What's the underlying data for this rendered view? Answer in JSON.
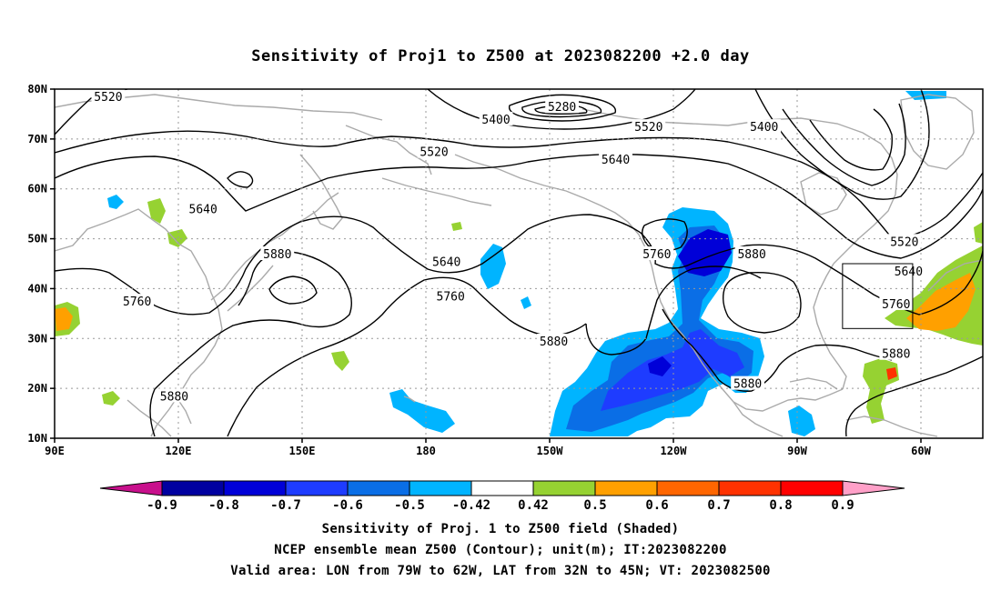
{
  "title": "Sensitivity of Proj1 to Z500 at 2023082200 +2.0 day",
  "lat_ticks": [
    "80N",
    "70N",
    "60N",
    "50N",
    "40N",
    "30N",
    "20N",
    "10N"
  ],
  "lon_ticks": [
    "90E",
    "120E",
    "150E",
    "180",
    "150W",
    "120W",
    "90W",
    "60W"
  ],
  "contour_labels": [
    {
      "text": "5520",
      "lon": 103,
      "lat": 78.5
    },
    {
      "text": "5280",
      "lon": -147,
      "lat": 76.5
    },
    {
      "text": "5400",
      "lon": -163,
      "lat": 74
    },
    {
      "text": "5520",
      "lon": -126,
      "lat": 72.5
    },
    {
      "text": "5400",
      "lon": -98,
      "lat": 72.5
    },
    {
      "text": "5520",
      "lon": -178,
      "lat": 67.5
    },
    {
      "text": "5640",
      "lon": -134,
      "lat": 66
    },
    {
      "text": "5640",
      "lon": 126,
      "lat": 56
    },
    {
      "text": "5520",
      "lon": -64,
      "lat": 49.5
    },
    {
      "text": "5880",
      "lon": 144,
      "lat": 47
    },
    {
      "text": "5640",
      "lon": -175,
      "lat": 45.5
    },
    {
      "text": "5760",
      "lon": -124,
      "lat": 47
    },
    {
      "text": "5880",
      "lon": -101,
      "lat": 47
    },
    {
      "text": "5640",
      "lon": -63,
      "lat": 43.5
    },
    {
      "text": "5760",
      "lon": 110,
      "lat": 37.5
    },
    {
      "text": "5760",
      "lon": -174,
      "lat": 38.5
    },
    {
      "text": "5760",
      "lon": -66,
      "lat": 37
    },
    {
      "text": "5880",
      "lon": -149,
      "lat": 29.5
    },
    {
      "text": "5880",
      "lon": -66,
      "lat": 27
    },
    {
      "text": "5880",
      "lon": -102,
      "lat": 21
    },
    {
      "text": "5880",
      "lon": 119,
      "lat": 18.5
    }
  ],
  "valid_area": {
    "lon_from": -79,
    "lon_to": -62,
    "lat_from": 32,
    "lat_to": 45
  },
  "colorbar": {
    "labels": [
      "-0.9",
      "-0.8",
      "-0.7",
      "-0.6",
      "-0.5",
      "-0.42",
      "0.42",
      "0.5",
      "0.6",
      "0.7",
      "0.8",
      "0.9"
    ],
    "colors": [
      "#0000a0",
      "#0000d8",
      "#1e3cff",
      "#0a6ee6",
      "#00b4ff",
      "#ffffff",
      "#96d232",
      "#ffa000",
      "#ff6600",
      "#ff3200",
      "#ff0000"
    ],
    "low_end_color": "#c8108c",
    "high_end_color": "#ffa0c8"
  },
  "colors": {
    "contour": "#000000",
    "coast": "#aaaaaa",
    "grid": "#999999",
    "neg_light": "#00b4ff",
    "neg_mid": "#0a6ee6",
    "neg_strong": "#1e3cff",
    "neg_max": "#0000d8",
    "pos_green": "#96d232",
    "pos_orange": "#ffa000",
    "pos_red": "#ff3200"
  },
  "captions": {
    "line1": "Sensitivity of Proj. 1 to Z500 field (Shaded)",
    "line2": "NCEP ensemble mean Z500 (Contour); unit(m); IT:2023082200",
    "line3": "Valid area: LON from 79W to 62W, LAT from 32N to 45N; VT: 2023082500"
  }
}
